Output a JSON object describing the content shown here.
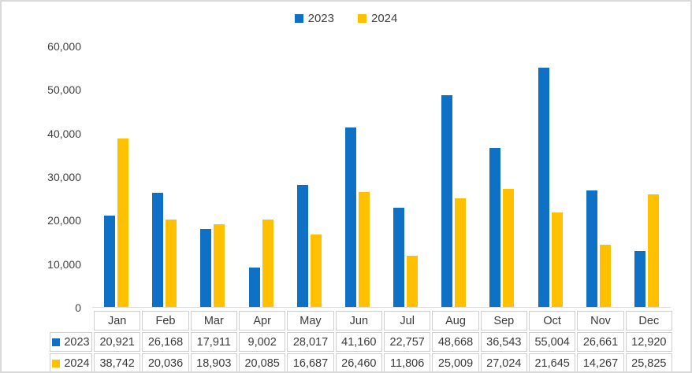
{
  "chart_data": {
    "type": "bar",
    "title": "",
    "xlabel": "",
    "ylabel": "",
    "categories": [
      "Jan",
      "Feb",
      "Mar",
      "Apr",
      "May",
      "Jun",
      "Jul",
      "Aug",
      "Sep",
      "Oct",
      "Nov",
      "Dec"
    ],
    "series": [
      {
        "name": "2023",
        "color": "#0e71c6",
        "values": [
          20921,
          26168,
          17911,
          9002,
          28017,
          41160,
          22757,
          48668,
          36543,
          55004,
          26661,
          12920
        ]
      },
      {
        "name": "2024",
        "color": "#ffc000",
        "values": [
          38742,
          20036,
          18903,
          20085,
          16687,
          26460,
          11806,
          25009,
          27024,
          21645,
          14267,
          25825
        ]
      }
    ],
    "ylim": [
      0,
      60000
    ],
    "yticks": [
      {
        "label": "60,000",
        "value": 60000
      },
      {
        "label": "50,000",
        "value": 50000
      },
      {
        "label": "40,000",
        "value": 40000
      },
      {
        "label": "30,000",
        "value": 30000
      },
      {
        "label": "20,000",
        "value": 20000
      },
      {
        "label": "10,000",
        "value": 10000
      },
      {
        "label": "0",
        "value": 0
      }
    ],
    "grid": false,
    "legend_position": "top-center",
    "data_table": {
      "shown": true,
      "rows": [
        {
          "label": "2023",
          "color": "#0e71c6",
          "cells": [
            "20,921",
            "26,168",
            "17,911",
            "9,002",
            "28,017",
            "41,160",
            "22,757",
            "48,668",
            "36,543",
            "55,004",
            "26,661",
            "12,920"
          ]
        },
        {
          "label": "2024",
          "color": "#ffc000",
          "cells": [
            "38,742",
            "20,036",
            "18,903",
            "20,085",
            "16,687",
            "26,460",
            "11,806",
            "25,009",
            "27,024",
            "21,645",
            "14,267",
            "25,825"
          ]
        }
      ]
    }
  },
  "colors": {
    "series_2023": "#0e71c6",
    "series_2024": "#ffc000",
    "axis_line": "#d9d9d9",
    "table_border": "#d0cece",
    "frame_border": "#d9d9d9",
    "text": "#404040"
  },
  "legend": {
    "items": [
      {
        "label": "2023",
        "color": "#0e71c6"
      },
      {
        "label": "2024",
        "color": "#ffc000"
      }
    ]
  }
}
